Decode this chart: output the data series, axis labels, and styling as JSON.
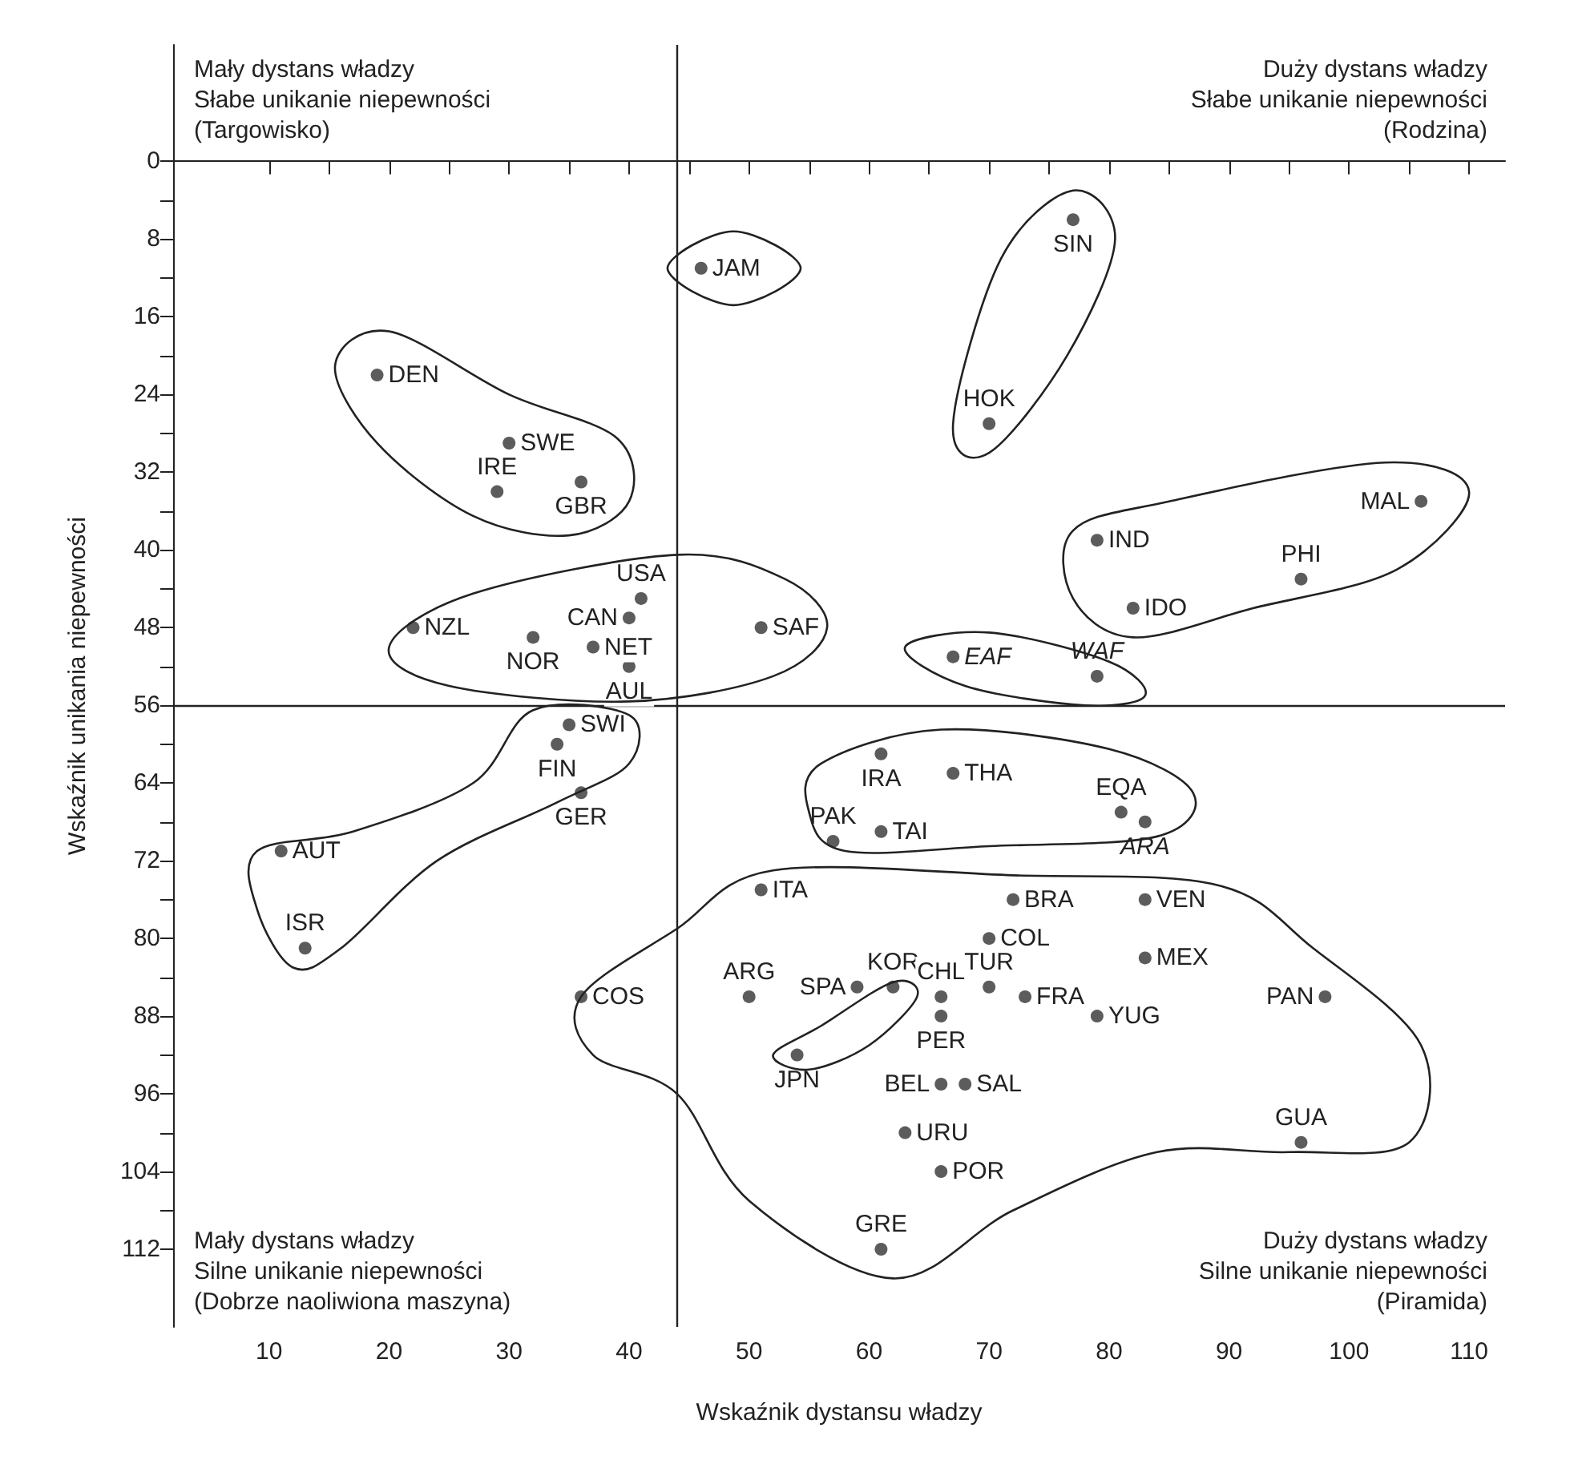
{
  "chart_data": {
    "type": "scatter",
    "xlabel": "Wskaźnik dystansu władzy",
    "ylabel": "Wskaźnik unikania niepewności",
    "marker": "circle",
    "xlim": [
      2,
      113
    ],
    "ylim": [
      120,
      -12
    ],
    "xticks": [
      10,
      {
        "value": 15,
        "label": null
      },
      20,
      {
        "value": 25,
        "label": null
      },
      30,
      {
        "value": 35,
        "label": null
      },
      40,
      {
        "value": 45,
        "label": null
      },
      50,
      {
        "value": 55,
        "label": null
      },
      60,
      {
        "value": 65,
        "label": null
      },
      70,
      {
        "value": 75,
        "label": null
      },
      80,
      {
        "value": 85,
        "label": null
      },
      90,
      {
        "value": 95,
        "label": null
      },
      100,
      {
        "value": 105,
        "label": null
      },
      110
    ],
    "yticks": [
      0,
      {
        "value": 4,
        "label": null
      },
      8,
      {
        "value": 12,
        "label": null
      },
      16,
      {
        "value": 20,
        "label": null
      },
      24,
      {
        "value": 28,
        "label": null
      },
      32,
      {
        "value": 36,
        "label": null
      },
      40,
      {
        "value": 44,
        "label": null
      },
      48,
      {
        "value": 52,
        "label": null
      },
      56,
      {
        "value": 60,
        "label": null
      },
      64,
      {
        "value": 68,
        "label": null
      },
      72,
      {
        "value": 76,
        "label": null
      },
      80,
      {
        "value": 84,
        "label": null
      },
      88,
      {
        "value": 92,
        "label": null
      },
      96,
      {
        "value": 100,
        "label": null
      },
      104,
      {
        "value": 108,
        "label": null
      },
      112
    ],
    "x": [
      46,
      19,
      30,
      29,
      36,
      41,
      40,
      22,
      32,
      37,
      40,
      51,
      77,
      70,
      106,
      79,
      96,
      82,
      67,
      79,
      35,
      34,
      36,
      11,
      13,
      36,
      51,
      50,
      59,
      61,
      67,
      57,
      61,
      81,
      83,
      72,
      83,
      70,
      83,
      62,
      66,
      70,
      73,
      79,
      66,
      98,
      54,
      66,
      68,
      63,
      66,
      61,
      96
    ],
    "series": [
      {
        "color": "#333333",
        "values": [
          11,
          22,
          29,
          34,
          33,
          45,
          47,
          48,
          49,
          50,
          52,
          48,
          6,
          27,
          35,
          39,
          43,
          46,
          51,
          53,
          58,
          60,
          65,
          71,
          81,
          86,
          75,
          86,
          85,
          61,
          63,
          70,
          69,
          67,
          68,
          76,
          76,
          80,
          82,
          85,
          86,
          85,
          86,
          88,
          88,
          86,
          92,
          95,
          95,
          100,
          104,
          112,
          101
        ]
      }
    ],
    "ref_lines": [
      {
        "axis": "x",
        "value": 44
      },
      {
        "axis": "y",
        "value": 56
      }
    ],
    "annotations": [
      "Mały dystans władzy\nSłabe unikanie niepewności\n(Targowisko)",
      "Duży dystans władzy\nSłabe unikanie niepewności\n(Rodzina)",
      "Mały dystans władzy\nSilne unikanie niepewności\n(Dobrze naoliwiona maszyna)",
      "Duży dystans władzy\nSilne unikanie niepewności\n(Piramida)",
      {
        "text": "JAM",
        "x": 46,
        "y": 11
      },
      {
        "text": "DEN",
        "x": 19,
        "y": 22
      },
      {
        "text": "SWE",
        "x": 30,
        "y": 29
      },
      {
        "text": "IRE",
        "x": 29,
        "y": 34
      },
      {
        "text": "GBR",
        "x": 36,
        "y": 33
      },
      {
        "text": "USA",
        "x": 41,
        "y": 45
      },
      {
        "text": "CAN",
        "x": 40,
        "y": 47
      },
      {
        "text": "NZL",
        "x": 22,
        "y": 48
      },
      {
        "text": "NOR",
        "x": 32,
        "y": 49
      },
      {
        "text": "NET",
        "x": 37,
        "y": 50
      },
      {
        "text": "AUL",
        "x": 40,
        "y": 52
      },
      {
        "text": "SAF",
        "x": 51,
        "y": 48
      },
      {
        "text": "SIN",
        "x": 77,
        "y": 6
      },
      {
        "text": "HOK",
        "x": 70,
        "y": 27
      },
      {
        "text": "MAL",
        "x": 106,
        "y": 35
      },
      {
        "text": "IND",
        "x": 79,
        "y": 39
      },
      {
        "text": "PHI",
        "x": 96,
        "y": 43
      },
      {
        "text": "IDO",
        "x": 82,
        "y": 46
      },
      {
        "text": "EAF",
        "x": 67,
        "y": 51
      },
      {
        "text": "WAF",
        "x": 79,
        "y": 53
      },
      {
        "text": "SWI",
        "x": 35,
        "y": 58
      },
      {
        "text": "FIN",
        "x": 34,
        "y": 60
      },
      {
        "text": "GER",
        "x": 36,
        "y": 65
      },
      {
        "text": "AUT",
        "x": 11,
        "y": 71
      },
      {
        "text": "ISR",
        "x": 13,
        "y": 81
      },
      {
        "text": "COS",
        "x": 36,
        "y": 86
      },
      {
        "text": "ITA",
        "x": 51,
        "y": 75
      },
      {
        "text": "ARG",
        "x": 50,
        "y": 86
      },
      {
        "text": "SPA",
        "x": 59,
        "y": 85
      },
      {
        "text": "IRA",
        "x": 61,
        "y": 61
      },
      {
        "text": "THA",
        "x": 67,
        "y": 63
      },
      {
        "text": "PAK",
        "x": 57,
        "y": 70
      },
      {
        "text": "TAI",
        "x": 61,
        "y": 69
      },
      {
        "text": "EQA",
        "x": 81,
        "y": 67
      },
      {
        "text": "ARA",
        "x": 83,
        "y": 68
      },
      {
        "text": "BRA",
        "x": 72,
        "y": 76
      },
      {
        "text": "VEN",
        "x": 83,
        "y": 76
      },
      {
        "text": "COL",
        "x": 70,
        "y": 80
      },
      {
        "text": "MEX",
        "x": 83,
        "y": 82
      },
      {
        "text": "KOR",
        "x": 62,
        "y": 85
      },
      {
        "text": "CHL",
        "x": 66,
        "y": 86
      },
      {
        "text": "TUR",
        "x": 70,
        "y": 85
      },
      {
        "text": "FRA",
        "x": 73,
        "y": 86
      },
      {
        "text": "YUG",
        "x": 79,
        "y": 88
      },
      {
        "text": "PER",
        "x": 66,
        "y": 88
      },
      {
        "text": "PAN",
        "x": 98,
        "y": 86
      },
      {
        "text": "JPN",
        "x": 54,
        "y": 92
      },
      {
        "text": "BEL",
        "x": 66,
        "y": 95
      },
      {
        "text": "SAL",
        "x": 68,
        "y": 95
      },
      {
        "text": "URU",
        "x": 63,
        "y": 100
      },
      {
        "text": "POR",
        "x": 66,
        "y": 104
      },
      {
        "text": "GRE",
        "x": 61,
        "y": 112
      },
      {
        "text": "GUA",
        "x": 96,
        "y": 101
      }
    ]
  }
}
